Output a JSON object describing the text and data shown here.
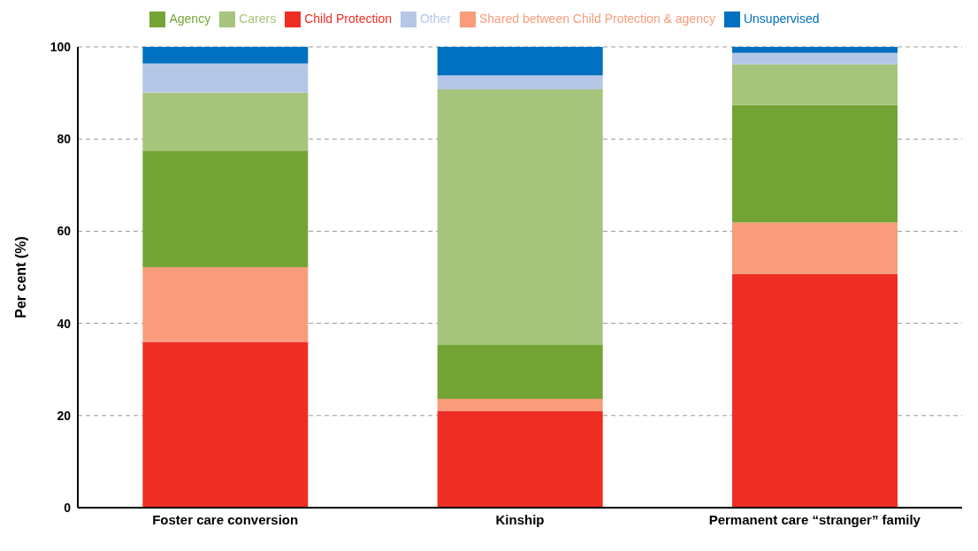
{
  "chart_data": {
    "type": "bar",
    "stacked": true,
    "ylabel": "Per cent (%)",
    "categories": [
      "Foster care conversion",
      "Kinship",
      "Permanent care “stranger” family"
    ],
    "series": [
      {
        "name": "Child Protection",
        "color": "#ee2e24",
        "values": [
          36.0,
          21.0,
          50.7
        ]
      },
      {
        "name": "Shared between Child Protection & agency",
        "color": "#f89c7c",
        "values": [
          16.2,
          2.6,
          11.2
        ]
      },
      {
        "name": "Agency",
        "color": "#74a534",
        "values": [
          25.3,
          11.7,
          25.5
        ]
      },
      {
        "name": "Carers",
        "color": "#a6c47c",
        "values": [
          12.6,
          55.5,
          8.8
        ]
      },
      {
        "name": "Other",
        "color": "#b4c7e7",
        "values": [
          6.3,
          3.0,
          2.5
        ]
      },
      {
        "name": "Unsupervised",
        "color": "#0070c0",
        "values": [
          3.6,
          6.2,
          1.3
        ]
      }
    ],
    "ylim": [
      0,
      100
    ],
    "yticks": [
      0,
      20,
      40,
      60,
      80,
      100
    ],
    "grid": "y",
    "legend": "top"
  }
}
